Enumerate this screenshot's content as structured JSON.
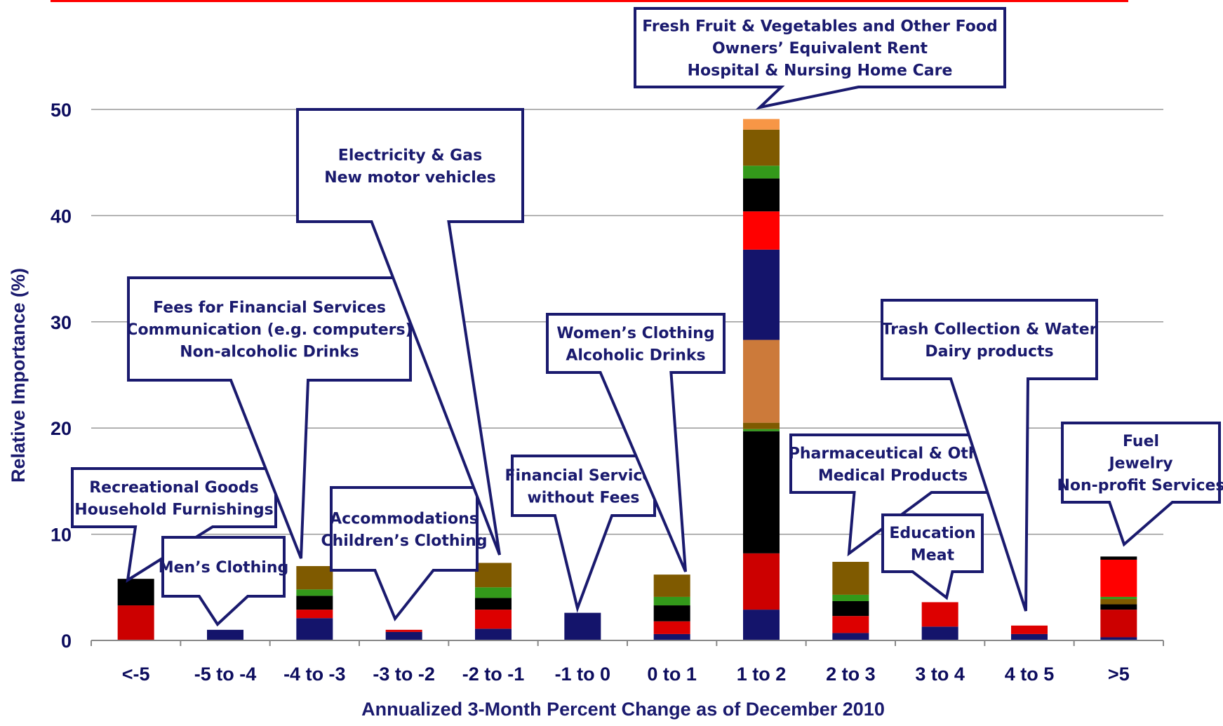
{
  "chart_data": {
    "type": "bar",
    "stacked": true,
    "xlabel": "Annualized 3-Month Percent Change as of December 2010",
    "ylabel": "Relative Importance (%)",
    "ylim": [
      0,
      50
    ],
    "yticks": [
      0,
      10,
      20,
      30,
      40,
      50
    ],
    "grid": true,
    "categories": [
      "<-5",
      "-5 to -4",
      "-4 to -3",
      "-3 to -2",
      "-2 to -1",
      "-1 to 0",
      "0 to 1",
      "1 to 2",
      "2 to 3",
      "3 to 4",
      "4 to 5",
      ">5"
    ],
    "stacks": [
      [
        {
          "value": 3.3,
          "color": "#cc0000"
        },
        {
          "value": 2.5,
          "color": "#000000"
        }
      ],
      [
        {
          "value": 1.0,
          "color": "#14146b"
        }
      ],
      [
        {
          "value": 2.1,
          "color": "#14146b"
        },
        {
          "value": 0.8,
          "color": "#dd0000"
        },
        {
          "value": 1.3,
          "color": "#000000"
        },
        {
          "value": 0.6,
          "color": "#33991a"
        },
        {
          "value": 2.2,
          "color": "#7f5a00"
        }
      ],
      [
        {
          "value": 0.8,
          "color": "#14146b"
        },
        {
          "value": 0.2,
          "color": "#dd0000"
        }
      ],
      [
        {
          "value": 1.1,
          "color": "#14146b"
        },
        {
          "value": 1.8,
          "color": "#dd0000"
        },
        {
          "value": 1.1,
          "color": "#000000"
        },
        {
          "value": 1.0,
          "color": "#33991a"
        },
        {
          "value": 2.3,
          "color": "#7f5a00"
        }
      ],
      [
        {
          "value": 2.6,
          "color": "#14146b"
        }
      ],
      [
        {
          "value": 0.6,
          "color": "#14146b"
        },
        {
          "value": 1.2,
          "color": "#dd0000"
        },
        {
          "value": 1.5,
          "color": "#000000"
        },
        {
          "value": 0.8,
          "color": "#33991a"
        },
        {
          "value": 2.1,
          "color": "#7f5a00"
        }
      ],
      [
        {
          "value": 2.9,
          "color": "#14146b"
        },
        {
          "value": 5.3,
          "color": "#cc0000"
        },
        {
          "value": 11.5,
          "color": "#000000"
        },
        {
          "value": 0.2,
          "color": "#33991a"
        },
        {
          "value": 0.6,
          "color": "#7f5a00"
        },
        {
          "value": 7.8,
          "color": "#cc7a3a"
        },
        {
          "value": 8.5,
          "color": "#14146b"
        },
        {
          "value": 3.6,
          "color": "#ff0000"
        },
        {
          "value": 3.1,
          "color": "#000000"
        },
        {
          "value": 1.2,
          "color": "#33991a"
        },
        {
          "value": 3.4,
          "color": "#7f5a00"
        },
        {
          "value": 1.0,
          "color": "#f79646"
        }
      ],
      [
        {
          "value": 0.7,
          "color": "#14146b"
        },
        {
          "value": 1.6,
          "color": "#dd0000"
        },
        {
          "value": 1.4,
          "color": "#000000"
        },
        {
          "value": 0.6,
          "color": "#33991a"
        },
        {
          "value": 3.1,
          "color": "#7f5a00"
        }
      ],
      [
        {
          "value": 1.3,
          "color": "#14146b"
        },
        {
          "value": 2.3,
          "color": "#dd0000"
        }
      ],
      [
        {
          "value": 0.6,
          "color": "#14146b"
        },
        {
          "value": 0.8,
          "color": "#dd0000"
        }
      ],
      [
        {
          "value": 0.3,
          "color": "#14146b"
        },
        {
          "value": 2.6,
          "color": "#cc0000"
        },
        {
          "value": 0.5,
          "color": "#000000"
        },
        {
          "value": 0.5,
          "color": "#7f5a00"
        },
        {
          "value": 0.2,
          "color": "#33991a"
        },
        {
          "value": 3.5,
          "color": "#ff0000"
        },
        {
          "value": 0.3,
          "color": "#000000"
        }
      ]
    ],
    "annotations": [
      {
        "category": "<-5",
        "lines": [
          "Recreational Goods",
          "Household Furnishings"
        ]
      },
      {
        "category": "-5 to -4",
        "lines": [
          "Men’s Clothing"
        ]
      },
      {
        "category": "-4 to -3",
        "lines": [
          "Fees for Financial Services",
          "Communication (e.g. computers)",
          "Non-alcoholic Drinks"
        ]
      },
      {
        "category": "-3 to -2",
        "lines": [
          "Accommodations",
          "Children’s Clothing"
        ]
      },
      {
        "category": "-2 to -1",
        "lines": [
          "Electricity & Gas",
          "New motor vehicles"
        ]
      },
      {
        "category": "-1 to 0",
        "lines": [
          "Financial Services",
          "without Fees"
        ]
      },
      {
        "category": "0 to 1",
        "lines": [
          "Women’s Clothing",
          "Alcoholic Drinks"
        ]
      },
      {
        "category": "1 to 2",
        "lines": [
          "Fresh Fruit & Vegetables and Other Food",
          "Owners’ Equivalent Rent",
          "Hospital & Nursing Home Care"
        ]
      },
      {
        "category": "2 to 3",
        "lines": [
          "Pharmaceutical & Other",
          "Medical Products"
        ]
      },
      {
        "category": "3 to 4",
        "lines": [
          "Education",
          "Meat"
        ]
      },
      {
        "category": "4 to 5",
        "lines": [
          "Trash Collection & Water",
          "Dairy products"
        ]
      },
      {
        "category": ">5",
        "lines": [
          "Fuel",
          "Jewelry",
          "Non-profit Services"
        ]
      }
    ]
  },
  "colors": {
    "axis_text": "#0d0d5e",
    "callout_border": "#1a1a6e",
    "grid": "#999999",
    "top_rule": "#ff0000"
  }
}
